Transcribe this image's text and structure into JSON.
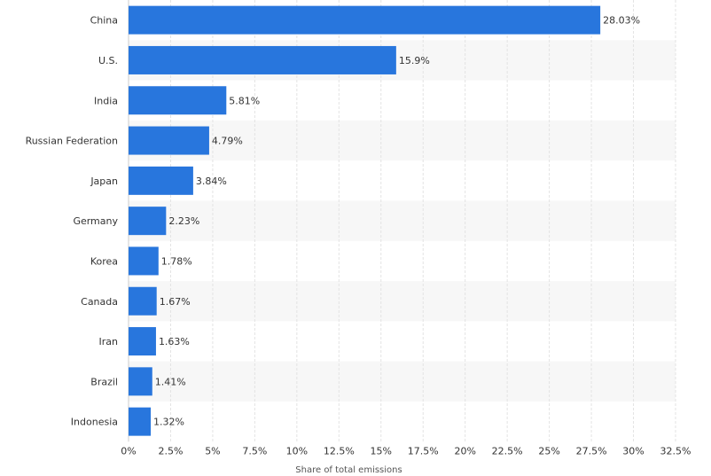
{
  "chart_data": {
    "type": "bar",
    "orientation": "horizontal",
    "categories": [
      "China",
      "U.S.",
      "India",
      "Russian Federation",
      "Japan",
      "Germany",
      "Korea",
      "Canada",
      "Iran",
      "Brazil",
      "Indonesia"
    ],
    "values": [
      28.03,
      15.9,
      5.81,
      4.79,
      3.84,
      2.23,
      1.78,
      1.67,
      1.63,
      1.41,
      1.32
    ],
    "value_labels": [
      "28.03%",
      "15.9%",
      "5.81%",
      "4.79%",
      "3.84%",
      "2.23%",
      "1.78%",
      "1.67%",
      "1.63%",
      "1.41%",
      "1.32%"
    ],
    "xlabel": "Share of total emissions",
    "ylabel": "",
    "xlim": [
      0,
      32.5
    ],
    "xticks": [
      0,
      2.5,
      5,
      7.5,
      10,
      12.5,
      15,
      17.5,
      20,
      22.5,
      25,
      27.5,
      30,
      32.5
    ],
    "xtick_labels": [
      "0%",
      "2.5%",
      "5%",
      "7.5%",
      "10%",
      "12.5%",
      "15%",
      "17.5%",
      "20%",
      "22.5%",
      "25%",
      "27.5%",
      "30%",
      "32.5%"
    ],
    "grid": true,
    "bar_color": "#2876dd",
    "band_color": "#f7f7f7"
  }
}
